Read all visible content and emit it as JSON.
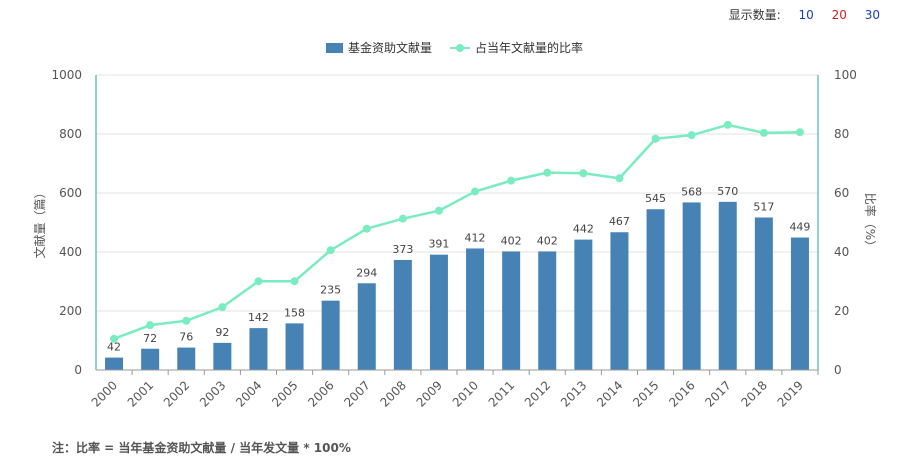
{
  "controls": {
    "display_count_label": "显示数量:",
    "options": [
      {
        "label": "10",
        "color": "#1a3fb3"
      },
      {
        "label": "20",
        "color": "#d42020"
      },
      {
        "label": "30",
        "color": "#1a3fb3"
      }
    ]
  },
  "footnote": "注：比率 = 当年基金资助文献量 / 当年发文量 * 100%",
  "chart_data": {
    "type": "bar",
    "categories": [
      "2000",
      "2001",
      "2002",
      "2003",
      "2004",
      "2005",
      "2006",
      "2007",
      "2008",
      "2009",
      "2010",
      "2011",
      "2012",
      "2013",
      "2014",
      "2015",
      "2016",
      "2017",
      "2018",
      "2019"
    ],
    "series": [
      {
        "name": "基金资助文献量",
        "type": "bar",
        "axis": "left",
        "color": "#4682b4",
        "values": [
          42,
          72,
          76,
          92,
          142,
          158,
          235,
          294,
          373,
          391,
          412,
          402,
          402,
          442,
          467,
          545,
          568,
          570,
          517,
          449
        ]
      },
      {
        "name": "占当年文献量的比率",
        "type": "line",
        "axis": "right",
        "color": "#7aecc0",
        "values": [
          10.6,
          15.2,
          16.7,
          21.3,
          30.1,
          30.1,
          40.6,
          47.9,
          51.3,
          54.0,
          60.5,
          64.2,
          66.9,
          66.7,
          65.0,
          78.4,
          79.6,
          83.1,
          80.4,
          80.6
        ]
      }
    ],
    "ylabel": "文献量（篇）",
    "ylim": [
      0,
      1000
    ],
    "yticks": [
      "0",
      "200",
      "400",
      "600",
      "800",
      "1000"
    ],
    "y2label": "比率（%）",
    "y2lim": [
      0,
      100
    ],
    "y2ticks": [
      "0",
      "20",
      "40",
      "60",
      "80",
      "100"
    ],
    "legend": "top-center",
    "grid": true
  }
}
